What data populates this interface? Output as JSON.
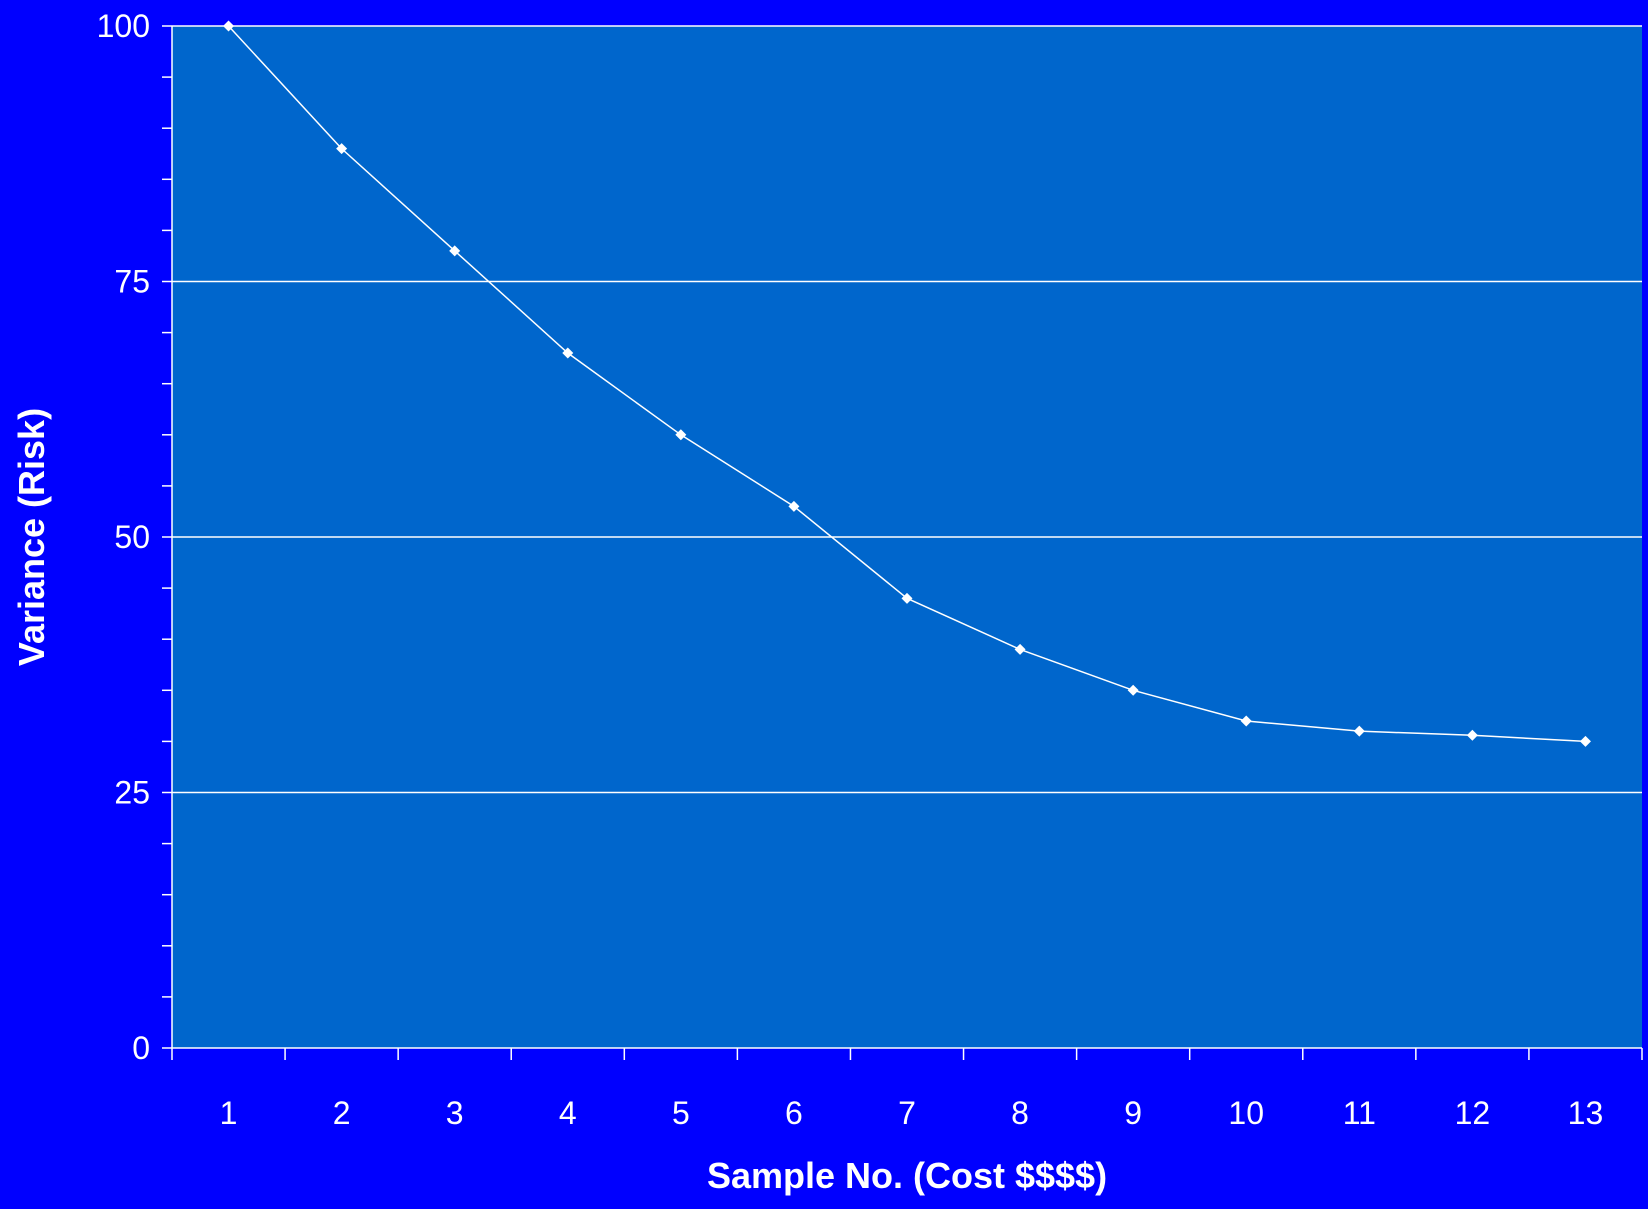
{
  "colors": {
    "page_background": "#0000FF",
    "plot_background": "#0066CC",
    "line": "#FFFFFF",
    "text": "#FFFFFF"
  },
  "chart_data": {
    "type": "line",
    "title": "",
    "xlabel": "Sample No. (Cost $$$$)",
    "ylabel": "Variance (Risk)",
    "categories": [
      "1",
      "2",
      "3",
      "4",
      "5",
      "6",
      "7",
      "8",
      "9",
      "10",
      "11",
      "12",
      "13"
    ],
    "series": [
      {
        "values": [
          100,
          88,
          78,
          68,
          60,
          53,
          44,
          39,
          35,
          32,
          31,
          30.6,
          30
        ]
      }
    ],
    "ylim": [
      0,
      100
    ],
    "y_major_ticks": [
      0,
      25,
      50,
      75,
      100
    ],
    "y_minor_step": 5,
    "grid": "horizontal-major",
    "legend": "none",
    "marker": "diamond"
  }
}
